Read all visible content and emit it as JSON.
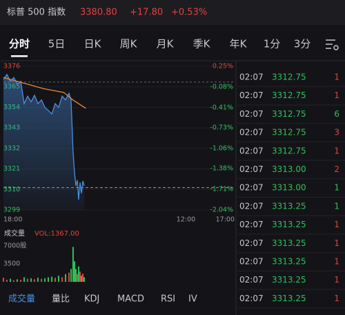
{
  "header": {
    "name": "标普 500 指数",
    "price": "3380.80",
    "change": "+17.80",
    "change_pct": "+0.53%"
  },
  "tabs": [
    {
      "label": "分时",
      "active": true
    },
    {
      "label": "5日"
    },
    {
      "label": "日K"
    },
    {
      "label": "周K"
    },
    {
      "label": "月K"
    },
    {
      "label": "季K"
    },
    {
      "label": "年K"
    },
    {
      "label": "1分"
    },
    {
      "label": "3分"
    }
  ],
  "chart_data": [
    {
      "type": "line",
      "x": [
        0,
        0.34,
        0.69,
        1.03,
        1.37,
        1.72,
        2.06,
        2.4,
        2.75,
        3.09,
        3.43,
        3.78,
        4.12,
        4.46,
        4.81,
        5.15,
        5.49,
        5.84,
        6.18,
        6.52,
        6.73,
        6.93,
        7.07,
        7.21,
        7.35,
        7.48,
        7.62,
        7.76,
        7.9,
        8.03
      ],
      "series": [
        {
          "color": "#4a90e2",
          "values": [
            3369,
            3371.6,
            3368,
            3370,
            3366.4,
            3368,
            3356,
            3360,
            3357,
            3360.5,
            3356,
            3358,
            3354,
            3352.4,
            3350.5,
            3356,
            3354,
            3360,
            3358,
            3361.6,
            3358,
            3330,
            3319,
            3312,
            3315,
            3304.5,
            3313.8,
            3308,
            3314.6,
            3312
          ]
        },
        {
          "color": "#e8883a",
          "x": [
            0,
            2,
            4,
            6,
            6.9,
            8.2
          ],
          "values": [
            3370,
            3367,
            3364,
            3362,
            3358,
            3353.5
          ]
        }
      ],
      "xlim": [
        0,
        23
      ],
      "xticks": [
        {
          "value": 0,
          "label": "18:00"
        },
        {
          "value": 18,
          "label": "12:00"
        },
        {
          "value": 23,
          "label": "17:00"
        }
      ],
      "ylim": [
        3299,
        3376
      ],
      "yticks": [
        3376,
        3365,
        3354,
        3343,
        3332,
        3321,
        3310,
        3299
      ],
      "y2lim": [
        -2.04,
        0.25
      ],
      "y2ticks": [
        {
          "value": 0.25,
          "label": "0.25%"
        },
        {
          "value": -0.08,
          "label": "-0.08%"
        },
        {
          "value": -0.41,
          "label": "-0.41%"
        },
        {
          "value": -0.73,
          "label": "-0.73%"
        },
        {
          "value": -1.06,
          "label": "-1.06%"
        },
        {
          "value": -1.38,
          "label": "-1.38%"
        },
        {
          "value": -1.71,
          "label": "-1.71%"
        },
        {
          "value": -2.04,
          "label": "-2.04%"
        }
      ],
      "prev_close": 3367.6,
      "current_line": 3311
    },
    {
      "type": "bar",
      "title": "成交量",
      "subtitle": "VOL:1367.00",
      "x": [
        0,
        0.34,
        0.69,
        1.03,
        1.37,
        1.72,
        2.06,
        2.4,
        2.75,
        3.09,
        3.43,
        3.78,
        4.12,
        4.46,
        4.81,
        5.15,
        5.49,
        5.84,
        6.18,
        6.52,
        6.73,
        6.93,
        7.07,
        7.21,
        7.35,
        7.48,
        7.62,
        7.76,
        7.9,
        8.03
      ],
      "values": [
        800,
        400,
        600,
        300,
        500,
        400,
        900,
        600,
        700,
        500,
        800,
        600,
        700,
        900,
        1000,
        800,
        1200,
        900,
        1500,
        1800,
        2500,
        6800,
        4000,
        2500,
        1500,
        3000,
        2000,
        1200,
        1600,
        900
      ],
      "xlim": [
        0,
        23
      ],
      "ylim": [
        0,
        7000
      ],
      "yticks": [
        {
          "value": 7000,
          "label": "7000股"
        },
        3500
      ]
    }
  ],
  "indicator_tabs": [
    {
      "label": "成交量",
      "active": true
    },
    {
      "label": "量比"
    },
    {
      "label": "KDJ"
    },
    {
      "label": "MACD"
    },
    {
      "label": "RSI"
    },
    {
      "label": "IV"
    }
  ],
  "trades": [
    {
      "time": "02:07",
      "price": "3312.75",
      "volume": "1",
      "color": "#e8403f"
    },
    {
      "time": "02:07",
      "price": "3312.75",
      "volume": "1",
      "color": "#e8403f"
    },
    {
      "time": "02:07",
      "price": "3312.75",
      "volume": "6",
      "color": "#2fc25b"
    },
    {
      "time": "02:07",
      "price": "3312.75",
      "volume": "3",
      "color": "#e8403f"
    },
    {
      "time": "02:07",
      "price": "3312.75",
      "volume": "1",
      "color": "#e8403f"
    },
    {
      "time": "02:07",
      "price": "3313.00",
      "volume": "2",
      "color": "#e8403f"
    },
    {
      "time": "02:07",
      "price": "3313.00",
      "volume": "1",
      "color": "#2fc25b"
    },
    {
      "time": "02:07",
      "price": "3313.25",
      "volume": "1",
      "color": "#2fc25b"
    },
    {
      "time": "02:07",
      "price": "3313.25",
      "volume": "1",
      "color": "#e8403f"
    },
    {
      "time": "02:07",
      "price": "3313.25",
      "volume": "1",
      "color": "#e8403f"
    },
    {
      "time": "02:07",
      "price": "3313.25",
      "volume": "1",
      "color": "#e8403f"
    },
    {
      "time": "02:07",
      "price": "3313.25",
      "volume": "1",
      "color": "#e8403f"
    },
    {
      "time": "02:07",
      "price": "3313.25",
      "volume": "1",
      "color": "#e8403f"
    }
  ]
}
